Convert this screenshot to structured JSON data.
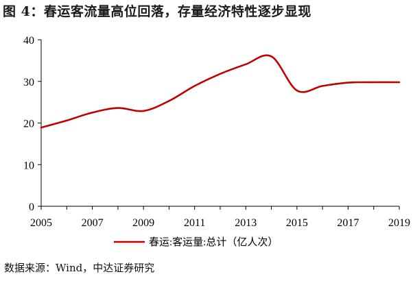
{
  "figure": {
    "title": "图 4：春运客流量高位回落，存量经济特性逐步显现",
    "source": "数据来源：Wind，中达证券研究"
  },
  "chart_data": {
    "type": "line",
    "title": "",
    "xlabel": "",
    "ylabel": "",
    "xlim": [
      2005,
      2019
    ],
    "ylim": [
      0,
      40
    ],
    "x_ticks": [
      "2005",
      "2007",
      "2009",
      "2011",
      "2013",
      "2015",
      "2017",
      "2019"
    ],
    "y_ticks": [
      "0",
      "10",
      "20",
      "30",
      "40"
    ],
    "grid": false,
    "legend_position": "bottom",
    "series": [
      {
        "name": "春运:客运量:总计（亿人次）",
        "color": "#c00000",
        "x": [
          2005,
          2006,
          2007,
          2008,
          2009,
          2010,
          2011,
          2012,
          2013,
          2014,
          2015,
          2016,
          2017,
          2018,
          2019
        ],
        "y": [
          18.9,
          20.6,
          22.5,
          23.6,
          22.9,
          25.3,
          28.9,
          31.8,
          34.1,
          36.0,
          27.8,
          28.9,
          29.7,
          29.8,
          29.8
        ]
      }
    ]
  }
}
